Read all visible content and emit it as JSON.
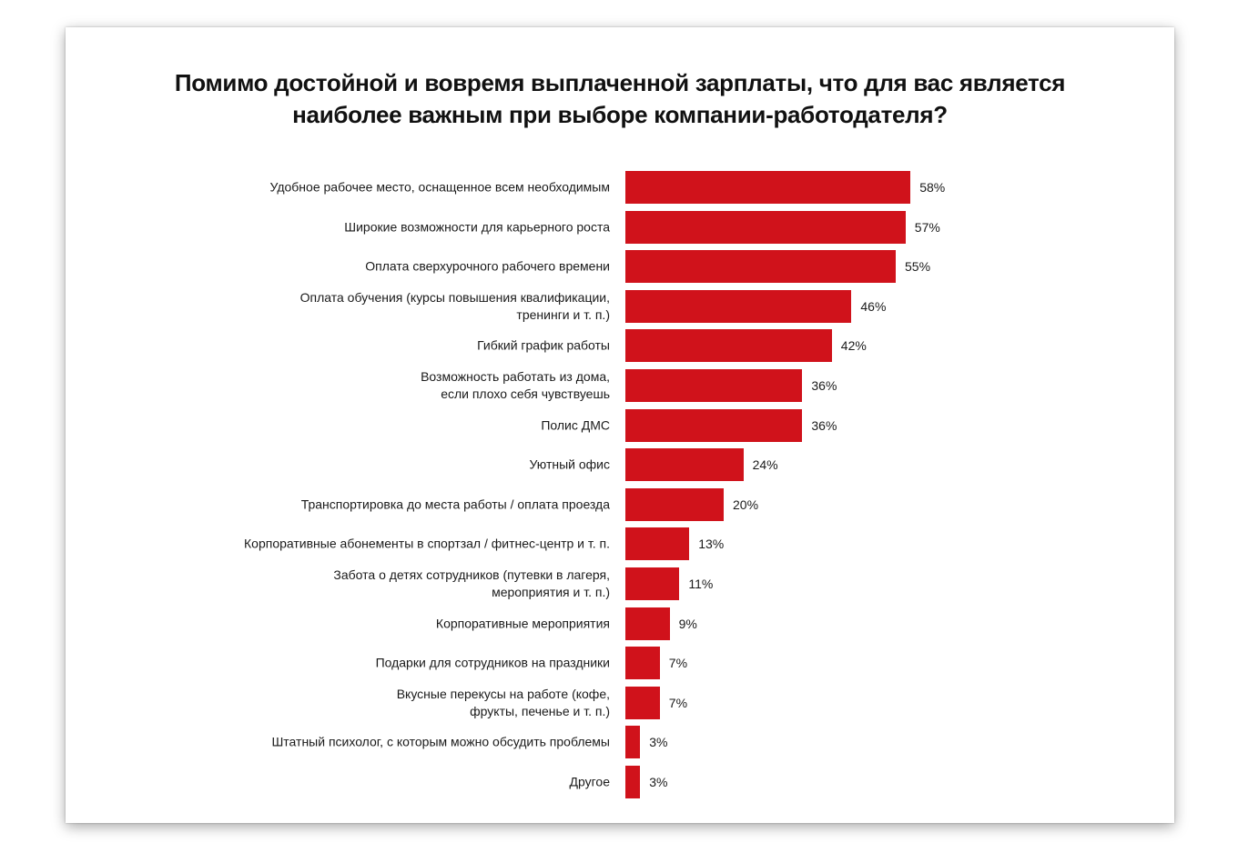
{
  "chart_data": {
    "type": "bar",
    "orientation": "horizontal",
    "title": "Помимо достойной и вовремя выплаченной зарплаты, что для вас является\nнаиболее важным при выборе компании-работодателя?",
    "categories": [
      "Удобное рабочее место, оснащенное всем необходимым",
      "Широкие возможности для карьерного роста",
      "Оплата сверхурочного рабочего времени",
      "Оплата обучения (курсы повышения квалификации,\nтренинги и т. п.)",
      "Гибкий график работы",
      "Возможность работать из дома,\nесли плохо себя чувствуешь",
      "Полис ДМС",
      "Уютный офис",
      "Транспортировка до места работы / оплата проезда",
      "Корпоративные абонементы в спортзал / фитнес-центр и т. п.",
      "Забота о детях сотрудников (путевки в лагеря,\nмероприятия и т. п.)",
      "Корпоративные мероприятия",
      "Подарки для сотрудников на праздники",
      "Вкусные перекусы на работе (кофе,\nфрукты, печенье и т. п.)",
      "Штатный психолог, с которым можно обсудить проблемы",
      "Другое"
    ],
    "values": [
      58,
      57,
      55,
      46,
      42,
      36,
      36,
      24,
      20,
      13,
      11,
      9,
      7,
      7,
      3,
      3
    ],
    "value_labels": [
      "58%",
      "57%",
      "55%",
      "46%",
      "42%",
      "36%",
      "36%",
      "24%",
      "20%",
      "13%",
      "11%",
      "9%",
      "7%",
      "7%",
      "3%",
      "3%"
    ],
    "bar_color": "#d0121b",
    "grid": false,
    "xlim": [
      0,
      100
    ]
  }
}
